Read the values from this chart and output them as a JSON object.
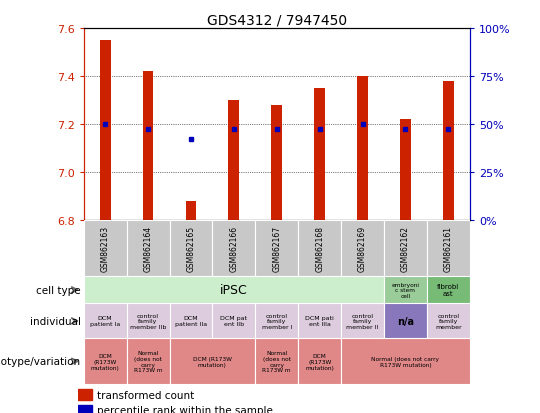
{
  "title": "GDS4312 / 7947450",
  "samples": [
    "GSM862163",
    "GSM862164",
    "GSM862165",
    "GSM862166",
    "GSM862167",
    "GSM862168",
    "GSM862169",
    "GSM862162",
    "GSM862161"
  ],
  "transformed_count": [
    7.55,
    7.42,
    6.88,
    7.3,
    7.28,
    7.35,
    7.4,
    7.22,
    7.38
  ],
  "percentile_rank": [
    7.2,
    7.18,
    7.14,
    7.18,
    7.18,
    7.18,
    7.2,
    7.18,
    7.18
  ],
  "ymin": 6.8,
  "ymax": 7.6,
  "yticks": [
    6.8,
    7.0,
    7.2,
    7.4,
    7.6
  ],
  "y2ticks": [
    0,
    25,
    50,
    75,
    100
  ],
  "bar_color": "#cc2200",
  "dot_color": "#0000bb",
  "axis_color_left": "#cc2200",
  "axis_color_right": "#0000bb",
  "sample_bg": "#c8c8c8",
  "cell_type_ipsc_color": "#cceecc",
  "cell_type_esc_color": "#99cc99",
  "cell_type_fib_color": "#77bb77",
  "individual_color": "#ddccdd",
  "individual_na_color": "#8877bb",
  "individual_last_color": "#ddccdd",
  "genotype_color": "#e08888",
  "individual": [
    {
      "label": "DCM\npatient Ia",
      "span": [
        0,
        0
      ],
      "color": "#ddccdd"
    },
    {
      "label": "control\nfamily\nmember IIb",
      "span": [
        1,
        1
      ],
      "color": "#ddccdd"
    },
    {
      "label": "DCM\npatient IIa",
      "span": [
        2,
        2
      ],
      "color": "#ddccdd"
    },
    {
      "label": "DCM pat\nent IIb",
      "span": [
        3,
        3
      ],
      "color": "#ddccdd"
    },
    {
      "label": "control\nfamily\nmember I",
      "span": [
        4,
        4
      ],
      "color": "#ddccdd"
    },
    {
      "label": "DCM pati\nent IIIa",
      "span": [
        5,
        5
      ],
      "color": "#ddccdd"
    },
    {
      "label": "control\nfamily\nmember II",
      "span": [
        6,
        6
      ],
      "color": "#ddccdd"
    },
    {
      "label": "n/a",
      "span": [
        7,
        7
      ],
      "color": "#8877bb"
    },
    {
      "label": "control\nfamily\nmember",
      "span": [
        8,
        8
      ],
      "color": "#ddccdd"
    }
  ],
  "genotype": [
    {
      "label": "DCM\n(R173W\nmutation)",
      "span": [
        0,
        0
      ]
    },
    {
      "label": "Normal\n(does not\ncarry\nR173W m",
      "span": [
        1,
        1
      ]
    },
    {
      "label": "DCM (R173W\nmutation)",
      "span": [
        2,
        3
      ]
    },
    {
      "label": "Normal\n(does not\ncarry\nR173W m",
      "span": [
        4,
        4
      ]
    },
    {
      "label": "DCM\n(R173W\nmutation)",
      "span": [
        5,
        5
      ]
    },
    {
      "label": "Normal (does not carry\nR173W mutation)",
      "span": [
        6,
        8
      ]
    }
  ]
}
